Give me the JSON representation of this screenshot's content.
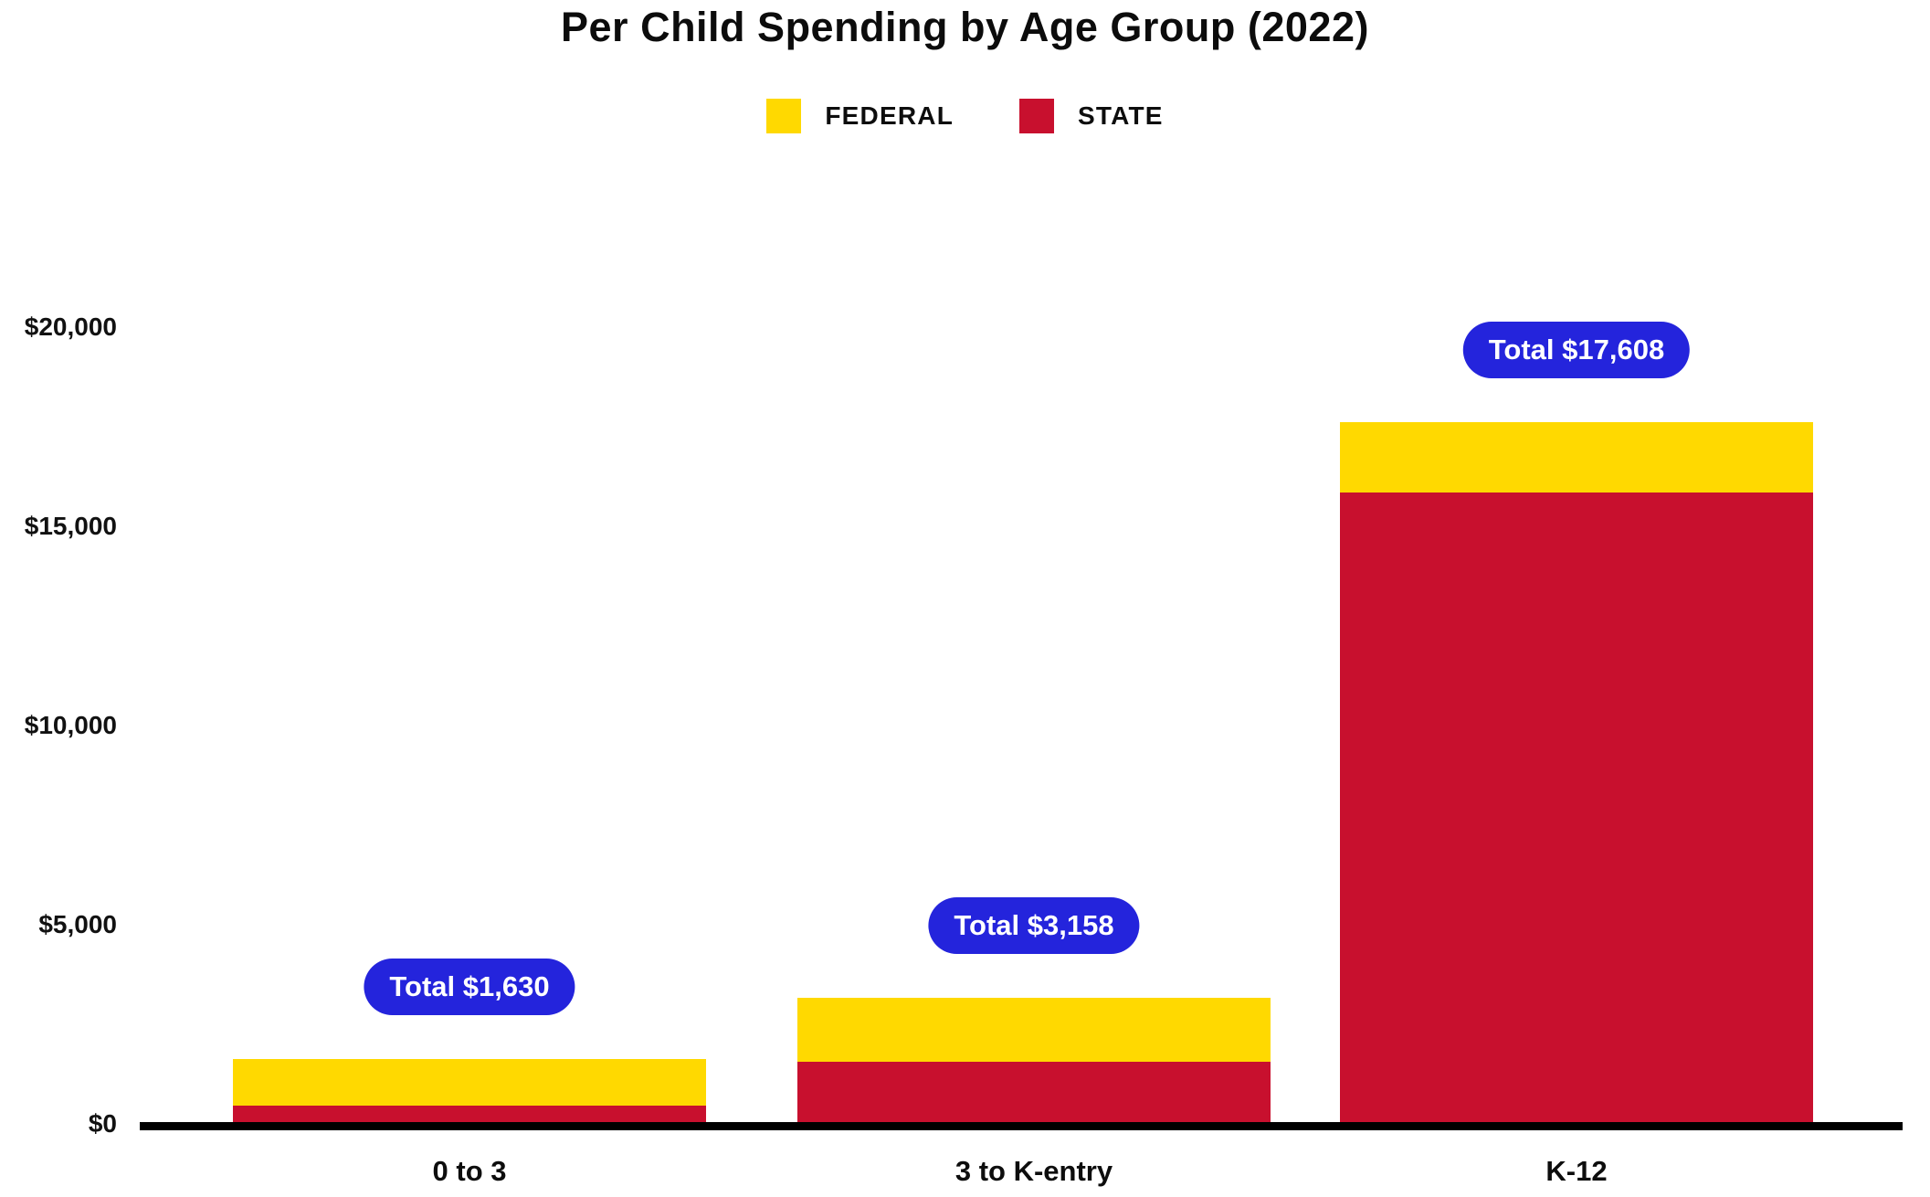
{
  "title": "Per Child Spending by Age Group (2022)",
  "legend": {
    "items": [
      {
        "label": "FEDERAL",
        "color": "#FFD900"
      },
      {
        "label": "STATE",
        "color": "#C8102E"
      }
    ]
  },
  "colors": {
    "federal": "#FFD900",
    "state": "#C8102E",
    "total_badge_bg": "#2424DC",
    "total_badge_text": "#FFFFFF",
    "axis_line": "#000000",
    "text": "#0D0D0D",
    "background": "#FFFFFF"
  },
  "chart_data": {
    "type": "bar",
    "stacked": true,
    "title": "Per Child Spending by Age Group (2022)",
    "categories": [
      "0 to 3",
      "3 to K-entry",
      "K-12"
    ],
    "series": [
      {
        "name": "FEDERAL",
        "color": "#FFD900",
        "values": [
          1180,
          1600,
          1760
        ]
      },
      {
        "name": "STATE",
        "color": "#C8102E",
        "values": [
          450,
          1558,
          15848
        ]
      }
    ],
    "stack_order_bottom_to_top": [
      "STATE",
      "FEDERAL"
    ],
    "totals": [
      1630,
      3158,
      17608
    ],
    "total_labels": [
      "Total $1,630",
      "Total $3,158",
      "Total $17,608"
    ],
    "xlabel": "",
    "ylabel": "",
    "ylim": [
      0,
      20000
    ],
    "yticks": [
      0,
      5000,
      10000,
      15000,
      20000
    ],
    "ytick_labels": [
      "$0",
      "$5,000",
      "$10,000",
      "$15,000",
      "$20,000"
    ],
    "grid": false,
    "legend_position": "top"
  }
}
